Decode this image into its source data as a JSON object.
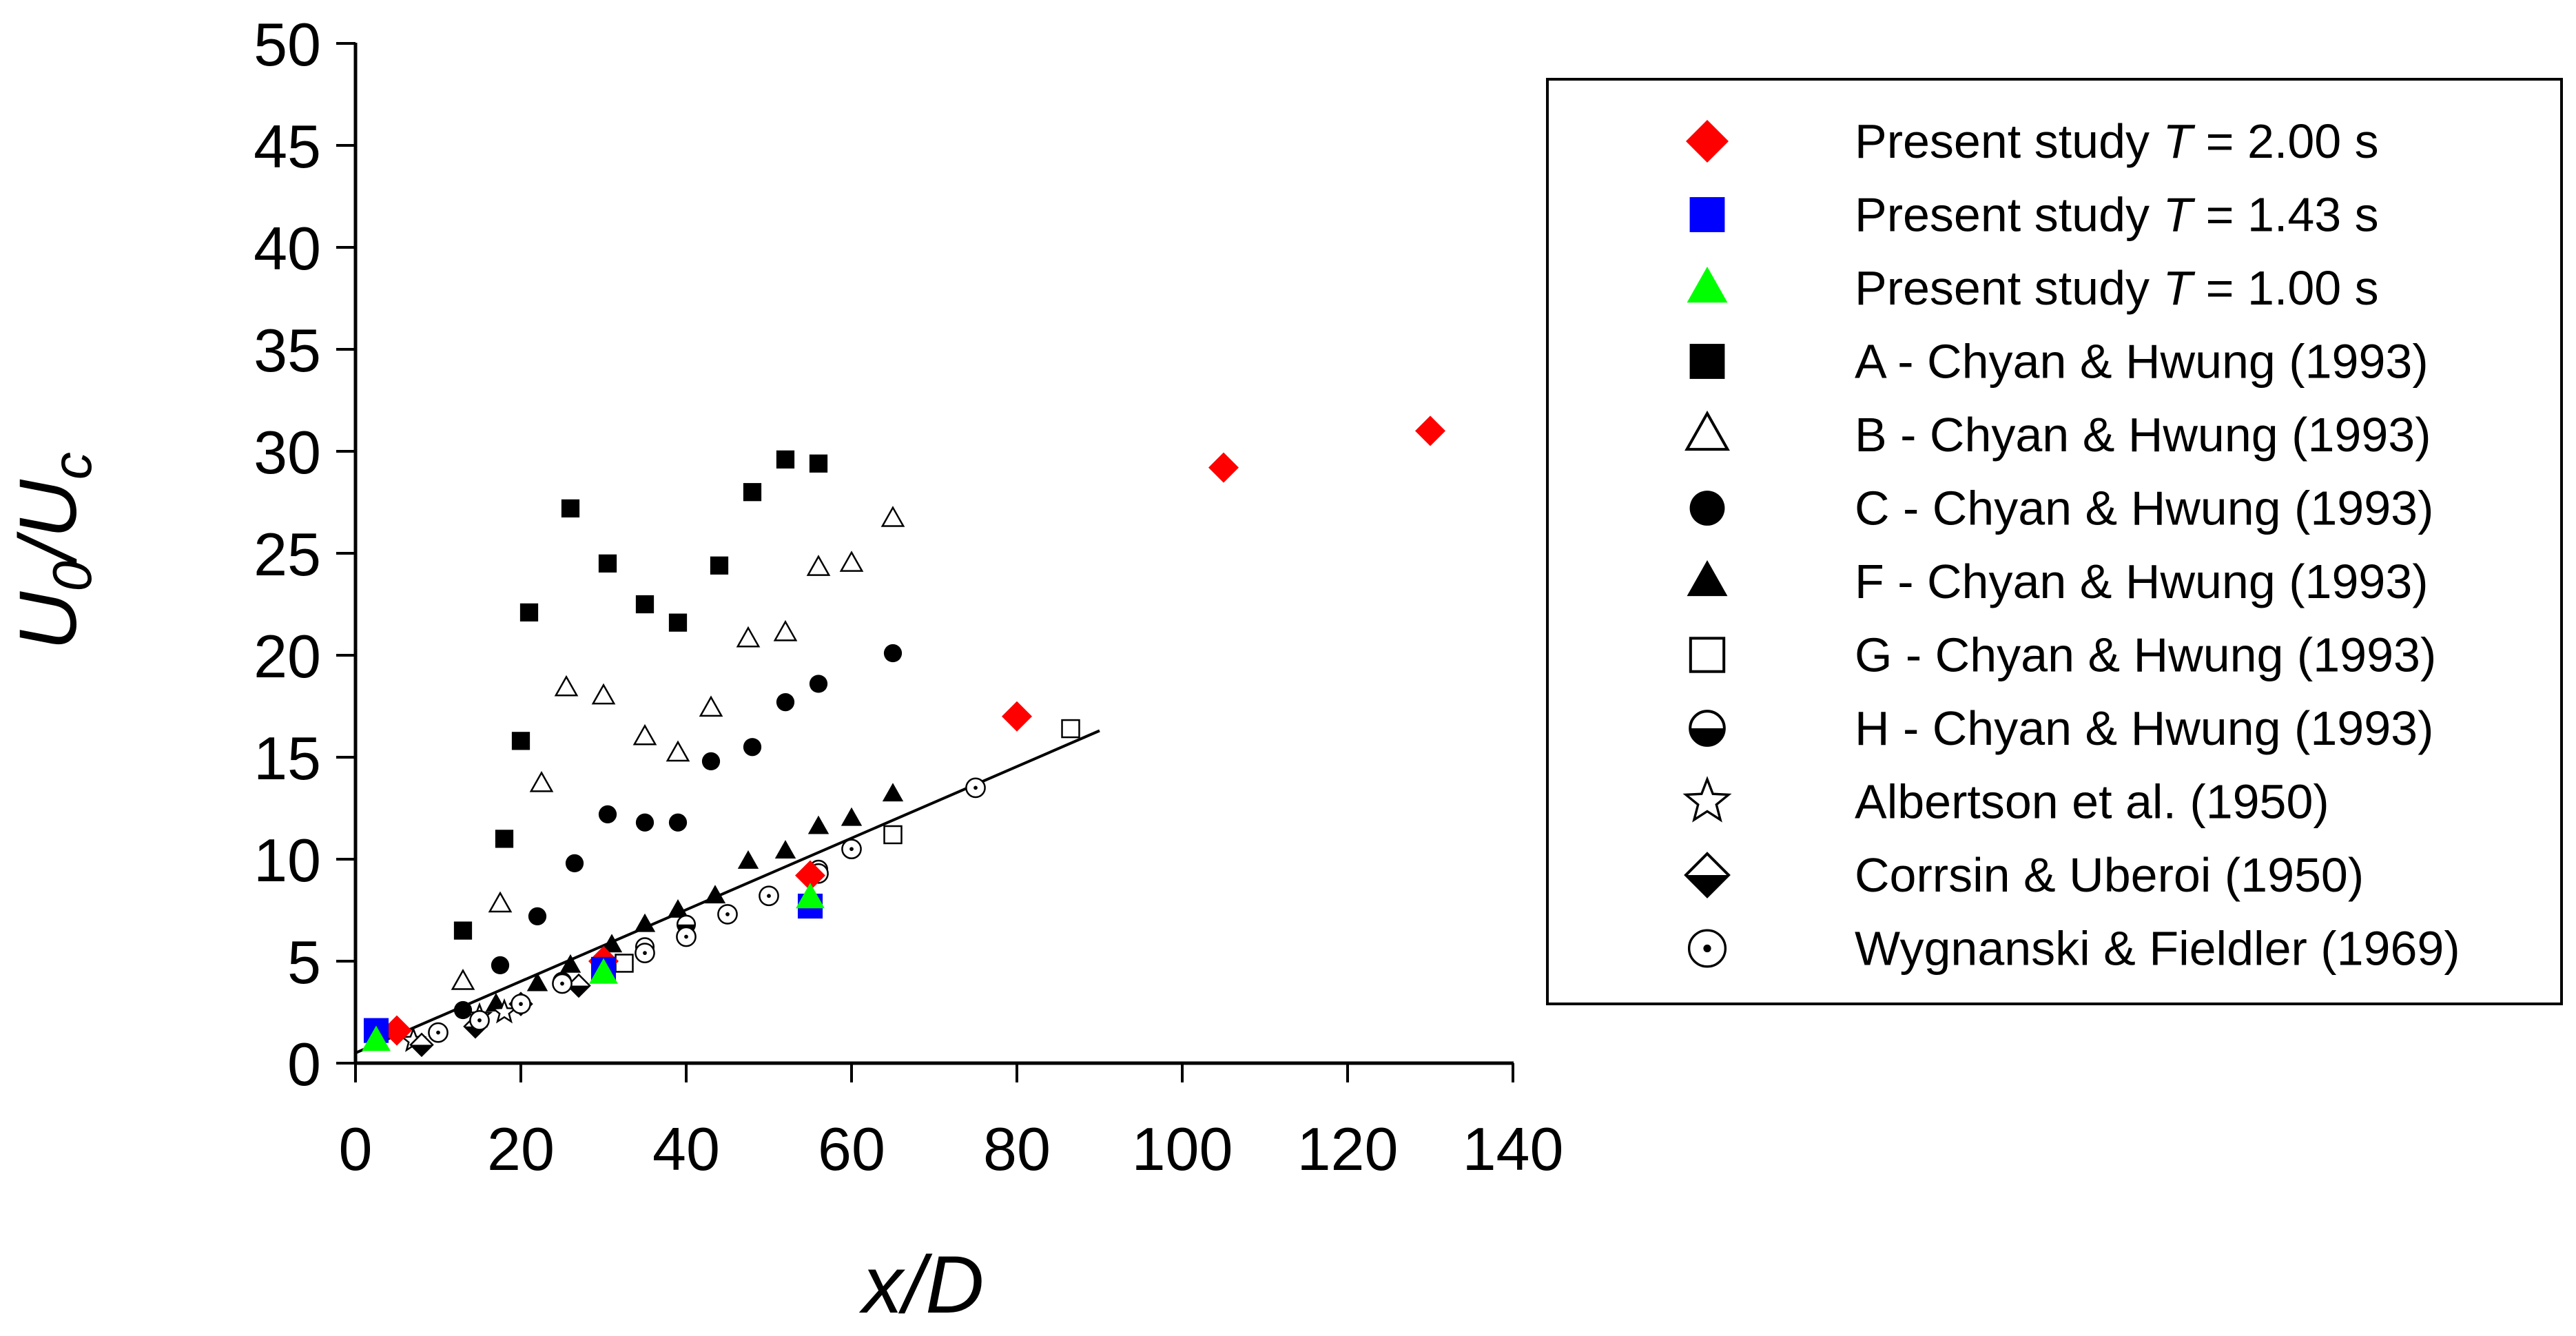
{
  "chart_data": {
    "type": "scatter",
    "title": "",
    "xlabel": "x/D",
    "ylabel": {
      "main": "U",
      "sub1": "0",
      "slash": "/U",
      "sub2": "c"
    },
    "xlim": [
      0,
      140
    ],
    "ylim": [
      0,
      50
    ],
    "xticks": [
      0,
      20,
      40,
      60,
      80,
      100,
      120,
      140
    ],
    "yticks": [
      0,
      5,
      10,
      15,
      20,
      25,
      30,
      35,
      40,
      45,
      50
    ],
    "grid": false,
    "legend_position": "top-right",
    "colors": {
      "red": "#ff0000",
      "blue": "#0000ff",
      "green": "#00ff00",
      "black": "#000000"
    },
    "series": [
      {
        "key": "ps200",
        "label_prefix": "Present study ",
        "label_var": "T",
        "label_suffix": " = 2.00 s",
        "marker": "diamond",
        "fill": "#ff0000",
        "points": [
          [
            5,
            1.6
          ],
          [
            30,
            5.0
          ],
          [
            55,
            9.2
          ],
          [
            80,
            17.0
          ],
          [
            105,
            29.2
          ],
          [
            130,
            31.0
          ]
        ]
      },
      {
        "key": "ps143",
        "label_prefix": "Present study ",
        "label_var": "T",
        "label_suffix": " = 1.43 s",
        "marker": "square",
        "fill": "#0000ff",
        "points": [
          [
            2.5,
            1.6
          ],
          [
            30,
            4.6
          ],
          [
            55,
            7.7
          ]
        ]
      },
      {
        "key": "ps100",
        "label_prefix": "Present study ",
        "label_var": "T",
        "label_suffix": " = 1.00 s",
        "marker": "triangle",
        "fill": "#00ff00",
        "points": [
          [
            2.5,
            1.1
          ],
          [
            30,
            4.4
          ],
          [
            55,
            8.1
          ]
        ]
      },
      {
        "key": "A",
        "label": "A - Chyan & Hwung (1993)",
        "marker": "square",
        "fill": "#000000",
        "points": [
          [
            13,
            6.5
          ],
          [
            18,
            11.0
          ],
          [
            20,
            15.8
          ],
          [
            21,
            22.1
          ],
          [
            26,
            27.2
          ],
          [
            30.5,
            24.5
          ],
          [
            35,
            22.5
          ],
          [
            39,
            21.6
          ],
          [
            44,
            24.4
          ],
          [
            48,
            28.0
          ],
          [
            52,
            29.6
          ],
          [
            56,
            29.4
          ]
        ]
      },
      {
        "key": "B",
        "label": "B - Chyan & Hwung (1993)",
        "marker": "triangle-open",
        "fill": "none",
        "points": [
          [
            13,
            4.0
          ],
          [
            17.5,
            7.8
          ],
          [
            22.5,
            13.7
          ],
          [
            25.5,
            18.4
          ],
          [
            30,
            18.0
          ],
          [
            35,
            16.0
          ],
          [
            39,
            15.2
          ],
          [
            43,
            17.4
          ],
          [
            47.5,
            20.8
          ],
          [
            52,
            21.1
          ],
          [
            56,
            24.3
          ],
          [
            60,
            24.5
          ],
          [
            65,
            26.7
          ]
        ]
      },
      {
        "key": "C",
        "label": "C - Chyan & Hwung (1993)",
        "marker": "circle",
        "fill": "#000000",
        "points": [
          [
            13,
            2.6
          ],
          [
            17.5,
            4.8
          ],
          [
            22,
            7.2
          ],
          [
            26.5,
            9.8
          ],
          [
            30.5,
            12.2
          ],
          [
            35,
            11.8
          ],
          [
            39,
            11.8
          ],
          [
            43,
            14.8
          ],
          [
            48,
            15.5
          ],
          [
            52,
            17.7
          ],
          [
            56,
            18.6
          ],
          [
            65,
            20.1
          ]
        ]
      },
      {
        "key": "F",
        "label": "F - Chyan & Hwung (1993)",
        "marker": "triangle",
        "fill": "#000000",
        "points": [
          [
            17,
            2.9
          ],
          [
            22,
            3.9
          ],
          [
            26,
            4.8
          ],
          [
            31,
            5.8
          ],
          [
            35,
            6.8
          ],
          [
            39,
            7.5
          ],
          [
            43.5,
            8.2
          ],
          [
            47.5,
            9.9
          ],
          [
            52,
            10.4
          ],
          [
            56,
            11.6
          ],
          [
            60,
            12.0
          ],
          [
            65,
            13.2
          ]
        ]
      },
      {
        "key": "G",
        "label": "G - Chyan & Hwung (1993)",
        "marker": "square-open",
        "fill": "none",
        "points": [
          [
            32.5,
            4.9
          ],
          [
            65,
            11.2
          ],
          [
            86.5,
            16.4
          ]
        ]
      },
      {
        "key": "H",
        "label": "H - Chyan & Hwung (1993)",
        "marker": "half-circle",
        "fill": "half",
        "points": [
          [
            25,
            4.0
          ],
          [
            35,
            5.7
          ],
          [
            40,
            6.8
          ],
          [
            56,
            9.5
          ]
        ]
      },
      {
        "key": "Alb",
        "label": "Albertson et al. (1950)",
        "marker": "star-open",
        "fill": "none",
        "points": [
          [
            7,
            1.1
          ],
          [
            15,
            2.3
          ],
          [
            18,
            2.5
          ]
        ]
      },
      {
        "key": "Cor",
        "label": "Corrsin & Uberoi (1950)",
        "marker": "diamond-half",
        "fill": "half",
        "points": [
          [
            8,
            0.9
          ],
          [
            14.5,
            1.8
          ],
          [
            20,
            2.9
          ],
          [
            27,
            3.8
          ]
        ]
      },
      {
        "key": "Wyg",
        "label": "Wygnanski & Fieldler (1969)",
        "marker": "circle-dot",
        "fill": "none",
        "points": [
          [
            10,
            1.5
          ],
          [
            15,
            2.1
          ],
          [
            20,
            2.9
          ],
          [
            25,
            3.9
          ],
          [
            35,
            5.4
          ],
          [
            40,
            6.2
          ],
          [
            45,
            7.3
          ],
          [
            50,
            8.2
          ],
          [
            56,
            9.3
          ],
          [
            60,
            10.5
          ],
          [
            75,
            13.5
          ]
        ]
      }
    ],
    "fit_line": {
      "from": [
        0,
        0.5
      ],
      "to": [
        90,
        16.3
      ]
    }
  }
}
